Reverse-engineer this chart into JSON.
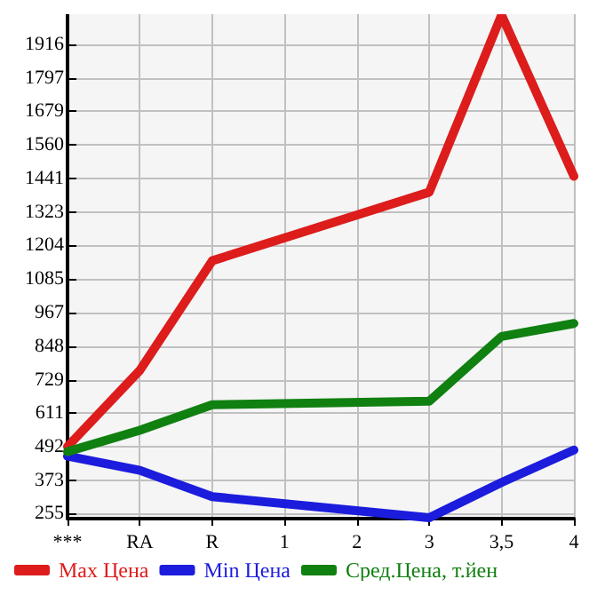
{
  "chart_data": {
    "type": "line",
    "categories": [
      "***",
      "RA",
      "R",
      "1",
      "2",
      "3",
      "3,5",
      "4"
    ],
    "series": [
      {
        "name": "Max Цена",
        "color": "#dd1c1c",
        "values": [
          492,
          762,
          1150,
          null,
          null,
          1393,
          2020,
          1449
        ]
      },
      {
        "name": "Min Цена",
        "color": "#1c1cdd",
        "values": [
          458,
          408,
          315,
          null,
          null,
          240,
          365,
          480
        ]
      },
      {
        "name": "Сред.Цена, т.йен",
        "color": "#108010",
        "values": [
          474,
          550,
          640,
          null,
          null,
          653,
          882,
          928
        ]
      }
    ],
    "ylim": [
      237,
      2023
    ],
    "yticks": [
      255,
      373,
      492,
      611,
      729,
      848,
      967,
      1085,
      1204,
      1323,
      1441,
      1560,
      1679,
      1797,
      1916
    ],
    "grid": true,
    "legend": "bottom",
    "marker": "none",
    "line_style": "solid"
  }
}
